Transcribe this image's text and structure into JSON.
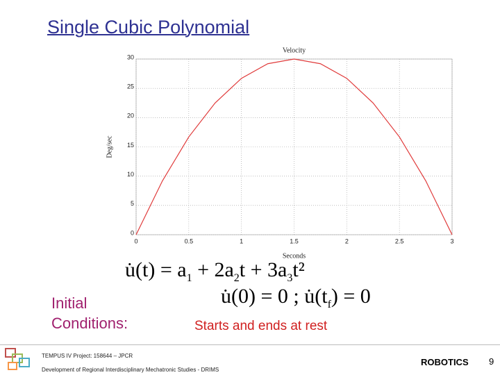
{
  "header": {
    "title": "Single Cubic Polynomial"
  },
  "chart_data": {
    "type": "line",
    "title": "Velocity",
    "x_label": "Seconds",
    "y_label": "Deg/sec",
    "x": [
      0,
      0.25,
      0.5,
      0.75,
      1,
      1.25,
      1.5,
      1.75,
      2,
      2.25,
      2.5,
      2.75,
      3
    ],
    "values": [
      0,
      9.2,
      16.7,
      22.5,
      26.7,
      29.2,
      30,
      29.2,
      26.7,
      22.5,
      16.7,
      9.2,
      0
    ],
    "color": "#e03a3a",
    "xlim": [
      0,
      3
    ],
    "ylim": [
      0,
      30
    ],
    "xticks": [
      0,
      0.5,
      1,
      1.5,
      2,
      2.5,
      3
    ],
    "yticks": [
      0,
      5,
      10,
      15,
      20,
      25,
      30
    ],
    "grid": true
  },
  "equations": {
    "velocity": [
      "u̇(t) = a",
      "1",
      " + 2a",
      "2",
      "t + 3a",
      "3",
      "t²"
    ],
    "conditions": [
      "u̇(0) = 0 ;  u̇(t",
      "f",
      ") = 0"
    ]
  },
  "initial_conditions": {
    "line1": "Initial",
    "line2": "Conditions:",
    "note": "Starts and ends at rest"
  },
  "footer": {
    "project": "TEMPUS IV Project: 158644 – JPCR",
    "program": "Development of Regional Interdisciplinary Mechatronic Studies - DRIMS",
    "course": "ROBOTICS",
    "page": "9"
  }
}
